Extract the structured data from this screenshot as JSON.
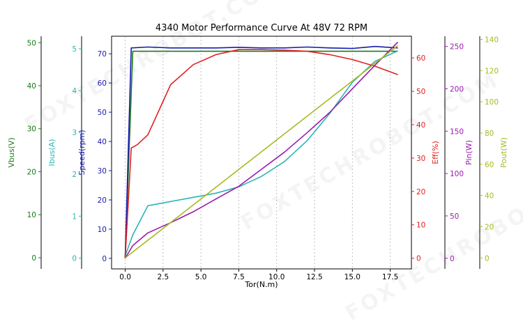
{
  "watermark": "FOXTECHROBOT.COM",
  "chart_data": {
    "type": "line",
    "title": "4340 Motor Performance Curve At 48V 72 RPM",
    "xlabel": "Tor(N.m)",
    "xlim": [
      -0.9,
      18.9
    ],
    "x_ticks": [
      0.0,
      2.5,
      5.0,
      7.5,
      10.0,
      12.5,
      15.0,
      17.5
    ],
    "x_tick_labels": [
      "0.0",
      "2.5",
      "5.0",
      "7.5",
      "10.0",
      "12.5",
      "15.0",
      "17.5"
    ],
    "grid": "vertical dotted",
    "axes": [
      {
        "id": "vbus",
        "label": "Vbus(V)",
        "color": "#1a7a1a",
        "ylim": [
          -2.6,
          51.5
        ],
        "ticks": [
          0,
          10,
          20,
          30,
          40,
          50
        ]
      },
      {
        "id": "ibus",
        "label": "Ibus(A)",
        "color": "#2bb5b5",
        "ylim": [
          -0.26,
          5.3
        ],
        "ticks": [
          0,
          1,
          2,
          3,
          4,
          5
        ]
      },
      {
        "id": "speed",
        "label": "Speed(rpm)",
        "color": "#1a1ab0",
        "ylim": [
          -3.6,
          76.0
        ],
        "ticks": [
          0,
          10,
          20,
          30,
          40,
          50,
          60,
          70
        ]
      },
      {
        "id": "eff",
        "label": "Eff(%)",
        "color": "#e02020",
        "ylim": [
          -3.2,
          66.5
        ],
        "ticks": [
          0,
          10,
          20,
          30,
          40,
          50,
          60
        ]
      },
      {
        "id": "pin",
        "label": "Pin(W)",
        "color": "#9a1ab0",
        "ylim": [
          -12.5,
          262.0
        ],
        "ticks": [
          0,
          50,
          100,
          150,
          200,
          250
        ]
      },
      {
        "id": "pout",
        "label": "Pout(W)",
        "color": "#a8b820",
        "ylim": [
          -7.0,
          142.0
        ],
        "ticks": [
          0,
          20,
          40,
          60,
          80,
          100,
          120,
          140
        ]
      }
    ],
    "series": [
      {
        "axis": "vbus",
        "color": "#1a7a1a",
        "x": [
          0.0,
          0.5,
          1.5,
          3.0,
          4.5,
          6.0,
          7.5,
          9.0,
          10.5,
          12.0,
          13.5,
          15.0,
          16.5,
          18.0
        ],
        "values": [
          0.0,
          48.0,
          48.0,
          48.0,
          48.0,
          48.0,
          48.0,
          48.0,
          48.0,
          48.0,
          48.0,
          48.0,
          48.0,
          48.0
        ]
      },
      {
        "axis": "ibus",
        "color": "#2bb5b5",
        "x": [
          0.0,
          0.5,
          1.5,
          3.0,
          4.5,
          6.0,
          7.5,
          9.0,
          10.5,
          12.0,
          13.5,
          15.0,
          16.5,
          18.0
        ],
        "values": [
          0.05,
          0.55,
          1.25,
          1.35,
          1.45,
          1.55,
          1.7,
          1.95,
          2.3,
          2.8,
          3.45,
          4.2,
          4.7,
          4.95
        ]
      },
      {
        "axis": "speed",
        "color": "#1a1ab0",
        "x": [
          0.0,
          0.4,
          1.5,
          3.0,
          4.5,
          6.0,
          7.5,
          9.0,
          10.5,
          12.0,
          13.5,
          15.0,
          16.5,
          18.0
        ],
        "values": [
          0.0,
          72.0,
          72.3,
          72.0,
          72.0,
          72.0,
          72.2,
          72.0,
          72.0,
          72.3,
          72.0,
          71.8,
          72.5,
          72.0
        ]
      },
      {
        "axis": "eff",
        "color": "#e02020",
        "x": [
          0.0,
          0.4,
          0.8,
          1.5,
          3.0,
          4.5,
          6.0,
          7.5,
          9.0,
          10.5,
          12.0,
          13.5,
          15.0,
          16.5,
          18.0
        ],
        "values": [
          0.0,
          33.0,
          34.0,
          37.0,
          52.0,
          58.0,
          61.0,
          62.5,
          62.5,
          62.3,
          62.0,
          61.0,
          59.5,
          57.5,
          55.0
        ]
      },
      {
        "axis": "pin",
        "color": "#9a1ab0",
        "x": [
          0.0,
          0.5,
          1.5,
          3.0,
          4.5,
          6.0,
          7.5,
          9.0,
          10.5,
          12.0,
          13.5,
          15.0,
          16.5,
          18.0
        ],
        "values": [
          0.0,
          15.0,
          30.0,
          42.0,
          55.0,
          70.0,
          85.0,
          105.0,
          125.0,
          148.0,
          172.0,
          200.0,
          228.0,
          255.0
        ]
      },
      {
        "axis": "pout",
        "color": "#a8b820",
        "x": [
          0.0,
          18.0
        ],
        "values": [
          0.0,
          136.0
        ]
      }
    ]
  }
}
